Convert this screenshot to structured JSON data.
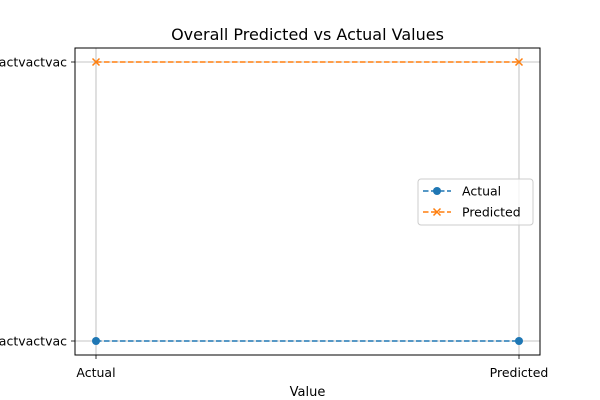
{
  "chart_data": {
    "type": "line",
    "title": "Overall Predicted vs Actual Values",
    "xlabel": "Value",
    "ylabel": "",
    "x_categories": [
      "Actual",
      "Predicted"
    ],
    "y_categories": [
      "vtvactvactvac",
      "vtvactvactvac"
    ],
    "series": [
      {
        "name": "Actual",
        "color": "#1f77b4",
        "marker": "circle",
        "linestyle": "dashed",
        "x": [
          "Actual",
          "Predicted"
        ],
        "y": [
          "vtvactvactvac",
          "vtvactvactvac"
        ],
        "y_index": [
          0,
          0
        ]
      },
      {
        "name": "Predicted",
        "color": "#ff7f0e",
        "marker": "x",
        "linestyle": "dashed",
        "x": [
          "Actual",
          "Predicted"
        ],
        "y": [
          "vtvactvactvac",
          "vtvactvactvac"
        ],
        "y_index": [
          1,
          1
        ]
      }
    ],
    "grid": true,
    "legend": "center-right"
  }
}
